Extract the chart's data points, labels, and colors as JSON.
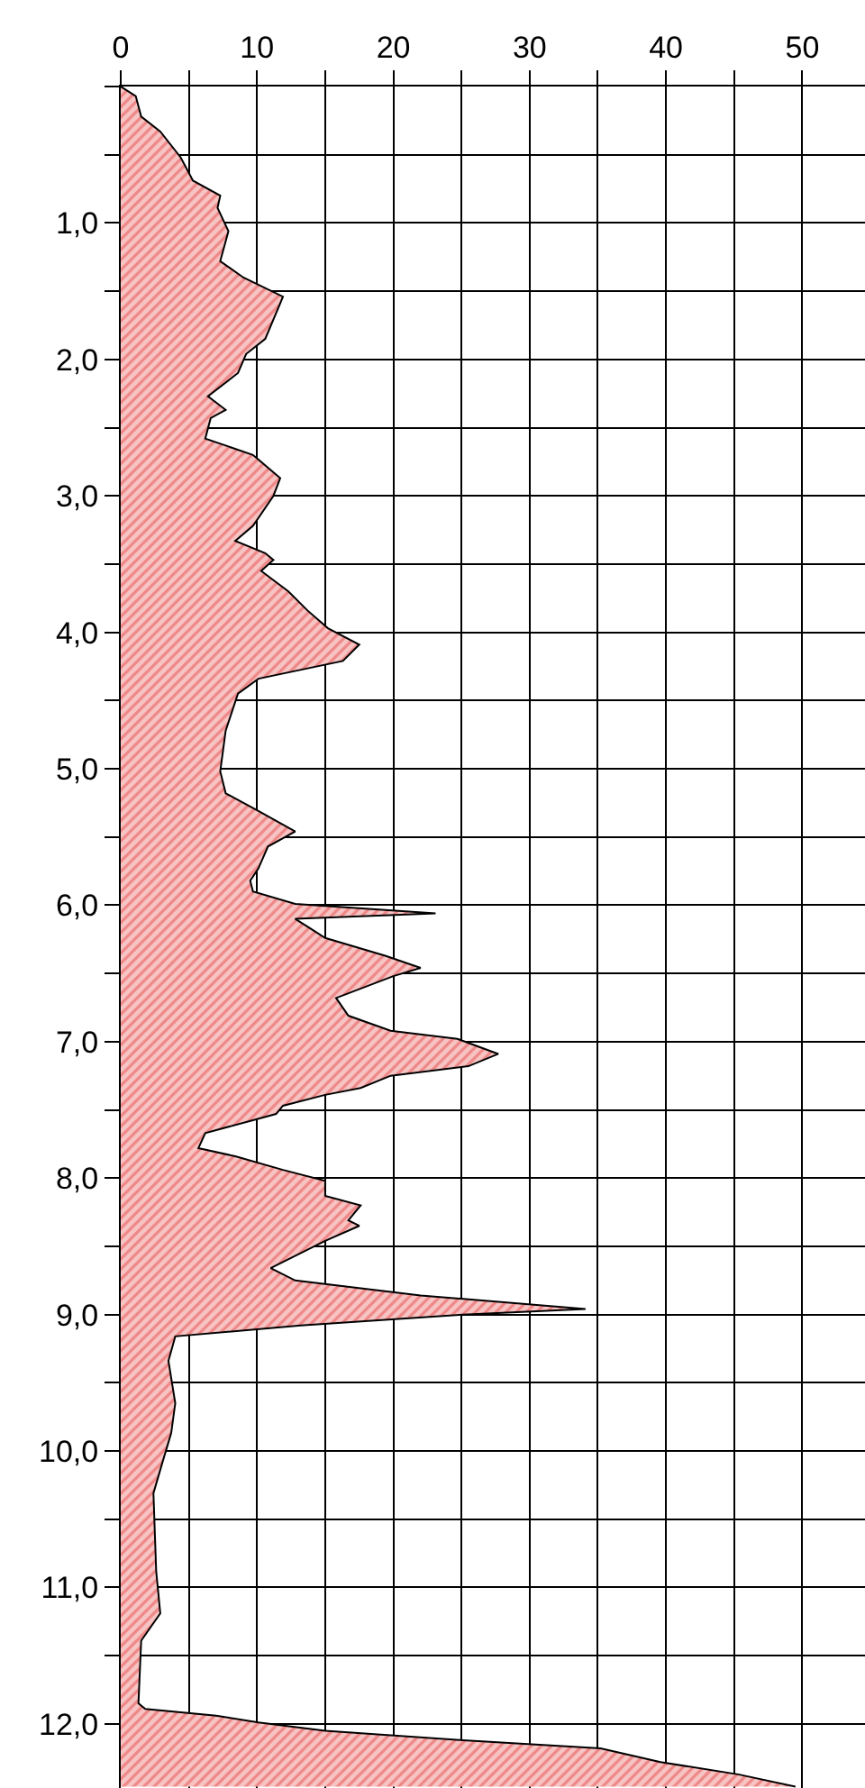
{
  "chart_data": {
    "type": "area",
    "orientation": "horizontal",
    "x": [
      0,
      0.07,
      0.22,
      0.33,
      0.52,
      0.69,
      0.8,
      0.89,
      1.06,
      1.28,
      1.4,
      1.54,
      1.59,
      1.85,
      1.96,
      2.1,
      2.27,
      2.37,
      2.43,
      2.58,
      2.7,
      2.87,
      3.0,
      3.22,
      3.33,
      3.42,
      3.47,
      3.55,
      3.7,
      3.84,
      3.97,
      4.09,
      4.21,
      4.34,
      4.45,
      4.72,
      5.02,
      5.18,
      5.31,
      5.46,
      5.57,
      5.73,
      5.82,
      5.9,
      5.99,
      6.06,
      6.1,
      6.17,
      6.24,
      6.37,
      6.46,
      6.52,
      6.68,
      6.81,
      6.92,
      6.98,
      7.09,
      7.18,
      7.25,
      7.34,
      7.39,
      7.47,
      7.53,
      7.67,
      7.78,
      7.84,
      7.94,
      8.02,
      8.13,
      8.2,
      8.31,
      8.35,
      8.46,
      8.66,
      8.75,
      8.86,
      8.96,
      9.0,
      9.08,
      9.16,
      9.34,
      9.65,
      9.87,
      10.07,
      10.31,
      10.88,
      11.19,
      11.39,
      11.85,
      11.89,
      11.94,
      11.99,
      12.05,
      12.12,
      12.18,
      12.28,
      12.37,
      12.46
    ],
    "values": [
      0,
      1.1,
      1.5,
      2.9,
      4.4,
      5.3,
      7.3,
      7.1,
      7.9,
      7.3,
      9.0,
      11.9,
      11.7,
      10.6,
      9.2,
      8.6,
      6.4,
      7.7,
      6.6,
      6.2,
      9.7,
      11.7,
      11.2,
      9.7,
      8.4,
      10.6,
      11.2,
      10.3,
      12.3,
      13.7,
      15.2,
      17.5,
      16.3,
      10.1,
      8.6,
      7.7,
      7.3,
      7.7,
      10.1,
      12.8,
      10.8,
      10.1,
      9.5,
      9.7,
      12.8,
      23.1,
      12.8,
      13.9,
      15.0,
      19.4,
      22.0,
      20.0,
      15.8,
      16.7,
      19.8,
      24.7,
      27.7,
      25.5,
      19.8,
      17.6,
      15.0,
      11.9,
      11.4,
      6.2,
      5.7,
      8.4,
      11.9,
      15.0,
      15.0,
      17.6,
      16.7,
      17.5,
      15.0,
      11.0,
      12.8,
      22.0,
      34.1,
      25.1,
      13.2,
      4.0,
      3.5,
      4.0,
      3.7,
      3.1,
      2.4,
      2.6,
      2.9,
      1.5,
      1.3,
      1.8,
      7.0,
      10.1,
      15.0,
      25.1,
      35.2,
      39.6,
      45.3,
      49.5
    ],
    "color": "#e84a4a",
    "xlim": [
      0,
      54.6
    ],
    "xticks": [
      0,
      {
        "value": 5,
        "label": null
      },
      10,
      {
        "value": 15,
        "label": null
      },
      20,
      {
        "value": 25,
        "label": null
      },
      30,
      {
        "value": 35,
        "label": null
      },
      40,
      {
        "value": 45,
        "label": null
      },
      50
    ],
    "ylim": [
      12.47,
      0
    ],
    "yticks": [
      {
        "value": 0,
        "label": null
      },
      {
        "value": 0.5,
        "label": null
      },
      {
        "value": 1,
        "label": "1,0"
      },
      {
        "value": 1.5,
        "label": null
      },
      {
        "value": 2,
        "label": "2,0"
      },
      {
        "value": 2.5,
        "label": null
      },
      {
        "value": 3,
        "label": "3,0"
      },
      {
        "value": 3.5,
        "label": null
      },
      {
        "value": 4,
        "label": "4,0"
      },
      {
        "value": 4.5,
        "label": null
      },
      {
        "value": 5,
        "label": "5,0"
      },
      {
        "value": 5.5,
        "label": null
      },
      {
        "value": 6,
        "label": "6,0"
      },
      {
        "value": 6.5,
        "label": null
      },
      {
        "value": 7,
        "label": "7,0"
      },
      {
        "value": 7.5,
        "label": null
      },
      {
        "value": 8,
        "label": "8,0"
      },
      {
        "value": 8.5,
        "label": null
      },
      {
        "value": 9,
        "label": "9,0"
      },
      {
        "value": 9.5,
        "label": null
      },
      {
        "value": 10,
        "label": "10,0"
      },
      {
        "value": 10.5,
        "label": null
      },
      {
        "value": 11,
        "label": "11,0"
      },
      {
        "value": 11.5,
        "label": null
      },
      {
        "value": 12,
        "label": "12,0"
      }
    ],
    "grid": true
  }
}
